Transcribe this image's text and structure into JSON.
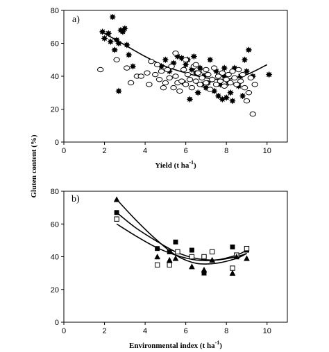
{
  "chart_data": [
    {
      "type": "scatter",
      "panel_label": "a)",
      "xlabel": "Yield (t ha",
      "xlabel_sup": "-1",
      "xlabel_suffix": ")",
      "ylabel": "Gluten content (%)",
      "xlim": [
        0,
        11
      ],
      "ylim": [
        0,
        80
      ],
      "xticks": [
        0,
        2,
        4,
        6,
        8,
        10
      ],
      "yticks": [
        0,
        20,
        40,
        60,
        80
      ],
      "series": [
        {
          "marker": "filled-star",
          "color": "#000000",
          "points": [
            [
              1.9,
              67
            ],
            [
              2.0,
              63
            ],
            [
              2.2,
              66
            ],
            [
              2.3,
              61
            ],
            [
              2.4,
              76
            ],
            [
              2.5,
              56
            ],
            [
              2.6,
              62
            ],
            [
              2.7,
              31
            ],
            [
              2.7,
              60
            ],
            [
              2.8,
              68
            ],
            [
              2.9,
              67
            ],
            [
              3.0,
              69
            ],
            [
              3.1,
              59
            ],
            [
              3.2,
              53
            ],
            [
              3.4,
              46
            ],
            [
              4.8,
              46
            ],
            [
              5.0,
              50
            ],
            [
              5.2,
              43
            ],
            [
              5.4,
              48
            ],
            [
              5.6,
              52
            ],
            [
              5.8,
              51
            ],
            [
              5.9,
              36
            ],
            [
              6.0,
              47
            ],
            [
              6.1,
              50
            ],
            [
              6.3,
              44
            ],
            [
              6.4,
              52
            ],
            [
              6.5,
              42
            ],
            [
              6.6,
              30
            ],
            [
              6.7,
              45
            ],
            [
              6.8,
              35
            ],
            [
              6.9,
              40
            ],
            [
              7.0,
              33
            ],
            [
              7.1,
              36
            ],
            [
              7.2,
              50
            ],
            [
              7.3,
              38
            ],
            [
              7.4,
              31
            ],
            [
              7.5,
              43
            ],
            [
              7.6,
              28
            ],
            [
              7.7,
              35
            ],
            [
              7.8,
              26
            ],
            [
              7.9,
              40
            ],
            [
              8.0,
              27
            ],
            [
              8.1,
              36
            ],
            [
              8.2,
              30
            ],
            [
              8.4,
              45
            ],
            [
              8.6,
              34
            ],
            [
              8.7,
              40
            ],
            [
              8.8,
              28
            ],
            [
              8.9,
              50
            ],
            [
              9.0,
              43
            ],
            [
              9.1,
              56
            ],
            [
              9.3,
              40
            ],
            [
              10.1,
              41
            ],
            [
              6.2,
              26
            ],
            [
              7.9,
              45
            ],
            [
              8.3,
              25
            ]
          ]
        },
        {
          "marker": "open-diamond",
          "color": "#000000",
          "points": [
            [
              1.8,
              44
            ],
            [
              2.6,
              50
            ],
            [
              3.1,
              45
            ],
            [
              3.3,
              36
            ],
            [
              3.6,
              40
            ],
            [
              3.8,
              40
            ],
            [
              4.1,
              42
            ],
            [
              4.2,
              35
            ],
            [
              4.3,
              49
            ],
            [
              4.5,
              41
            ],
            [
              4.6,
              47
            ],
            [
              4.7,
              38
            ],
            [
              4.8,
              43
            ],
            [
              4.9,
              33
            ],
            [
              5.0,
              36
            ],
            [
              5.1,
              44
            ],
            [
              5.2,
              39
            ],
            [
              5.3,
              46
            ],
            [
              5.4,
              33
            ],
            [
              5.5,
              40
            ],
            [
              5.6,
              36
            ],
            [
              5.7,
              31
            ],
            [
              5.8,
              37
            ],
            [
              5.9,
              44
            ],
            [
              6.0,
              35
            ],
            [
              6.1,
              41
            ],
            [
              6.2,
              38
            ],
            [
              6.3,
              33
            ],
            [
              6.4,
              46
            ],
            [
              6.5,
              37
            ],
            [
              6.6,
              42
            ],
            [
              6.7,
              35
            ],
            [
              6.8,
              39
            ],
            [
              6.9,
              43
            ],
            [
              7.0,
              36
            ],
            [
              7.1,
              41
            ],
            [
              7.2,
              32
            ],
            [
              7.3,
              38
            ],
            [
              7.4,
              45
            ],
            [
              7.5,
              35
            ],
            [
              7.6,
              40
            ],
            [
              7.7,
              37
            ],
            [
              7.8,
              42
            ],
            [
              7.9,
              34
            ],
            [
              8.0,
              38
            ],
            [
              8.1,
              41
            ],
            [
              8.2,
              36
            ],
            [
              8.3,
              43
            ],
            [
              8.4,
              39
            ],
            [
              8.5,
              35
            ],
            [
              8.6,
              44
            ],
            [
              8.7,
              37
            ],
            [
              8.8,
              41
            ],
            [
              8.9,
              33
            ],
            [
              9.0,
              25
            ],
            [
              9.1,
              30
            ],
            [
              9.2,
              39
            ],
            [
              9.3,
              17
            ],
            [
              9.4,
              35
            ],
            [
              5.5,
              54
            ],
            [
              6.0,
              50
            ],
            [
              6.5,
              47
            ],
            [
              7.0,
              44
            ]
          ]
        }
      ],
      "fit_curves": [
        {
          "style": "solid",
          "points": [
            [
              2.0,
              66
            ],
            [
              3.0,
              59
            ],
            [
              4.0,
              52
            ],
            [
              5.0,
              46
            ],
            [
              6.0,
              42
            ],
            [
              7.0,
              39
            ],
            [
              8.0,
              38
            ],
            [
              9.0,
              41
            ],
            [
              10.0,
              47
            ]
          ]
        }
      ]
    },
    {
      "type": "scatter",
      "panel_label": "b)",
      "xlabel": "Environmental index (t ha",
      "xlabel_sup": "-1",
      "xlabel_suffix": ")",
      "ylabel": "",
      "xlim": [
        0,
        11
      ],
      "ylim": [
        0,
        80
      ],
      "xticks": [
        0,
        2,
        4,
        6,
        8,
        10
      ],
      "yticks": [
        0,
        20,
        40,
        60,
        80
      ],
      "series": [
        {
          "marker": "filled-square",
          "color": "#000000",
          "points": [
            [
              2.6,
              67
            ],
            [
              4.6,
              45
            ],
            [
              5.2,
              43
            ],
            [
              5.5,
              49
            ],
            [
              6.3,
              44
            ],
            [
              6.9,
              30
            ],
            [
              8.3,
              46
            ],
            [
              8.5,
              41
            ],
            [
              9.0,
              44
            ]
          ]
        },
        {
          "marker": "open-square",
          "color": "#000000",
          "points": [
            [
              2.6,
              63
            ],
            [
              4.6,
              35
            ],
            [
              5.2,
              35
            ],
            [
              5.6,
              43
            ],
            [
              6.3,
              40
            ],
            [
              6.9,
              40
            ],
            [
              7.3,
              43
            ],
            [
              8.3,
              33
            ],
            [
              8.5,
              41
            ],
            [
              9.0,
              45
            ]
          ]
        },
        {
          "marker": "filled-triangle",
          "color": "#000000",
          "points": [
            [
              2.6,
              75
            ],
            [
              4.6,
              40
            ],
            [
              5.2,
              38
            ],
            [
              5.5,
              39
            ],
            [
              6.3,
              34
            ],
            [
              6.9,
              32
            ],
            [
              7.3,
              38
            ],
            [
              8.3,
              30
            ],
            [
              8.5,
              40
            ],
            [
              9.0,
              39
            ]
          ]
        }
      ],
      "fit_curves": [
        {
          "style": "solid",
          "points": [
            [
              2.6,
              75
            ],
            [
              3.5,
              63
            ],
            [
              4.5,
              51
            ],
            [
              5.5,
              41
            ],
            [
              6.5,
              36
            ],
            [
              7.5,
              36
            ],
            [
              8.5,
              39
            ],
            [
              9.0,
              42
            ]
          ]
        },
        {
          "style": "solid",
          "points": [
            [
              2.6,
              67
            ],
            [
              3.5,
              58
            ],
            [
              4.5,
              50
            ],
            [
              5.5,
              43
            ],
            [
              6.5,
              39
            ],
            [
              7.5,
              38
            ],
            [
              8.5,
              40
            ],
            [
              9.0,
              42
            ]
          ]
        },
        {
          "style": "solid",
          "points": [
            [
              2.6,
              60
            ],
            [
              3.5,
              53
            ],
            [
              4.5,
              46
            ],
            [
              5.5,
              41
            ],
            [
              6.5,
              38
            ],
            [
              7.5,
              38
            ],
            [
              8.5,
              41
            ],
            [
              9.0,
              44
            ]
          ]
        }
      ]
    }
  ]
}
